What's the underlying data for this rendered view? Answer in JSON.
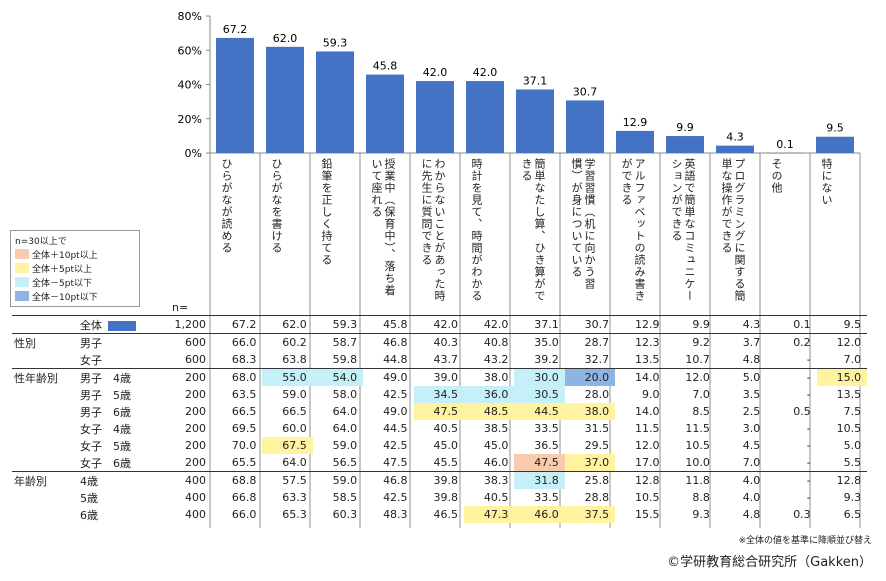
{
  "chart_data": {
    "type": "bar",
    "categories": [
      "ひらがなが読める",
      "ひらがなを書ける",
      "鉛筆を正しく持てる",
      "授業中（保育中）、落ち着いて座れる",
      "わからないことがあった時に先生に質問できる",
      "時計を見て、時間がわかる",
      "簡単なたし算、ひき算ができる",
      "学習習慣（机に向かう習慣）が身についている",
      "アルファベットの読み書きができる",
      "英語で簡単なコミュニケーションができる",
      "プログラミングに関する簡単な操作ができる",
      "その他",
      "特にない"
    ],
    "values": [
      67.2,
      62.0,
      59.3,
      45.8,
      42.0,
      42.0,
      37.1,
      30.7,
      12.9,
      9.9,
      4.3,
      0.1,
      9.5
    ],
    "value_labels": [
      "67.2",
      "62.0",
      "59.3",
      "45.8",
      "42.0",
      "42.0",
      "37.1",
      "30.7",
      "12.9",
      "9.9",
      "4.3",
      "0.1",
      "9.5"
    ],
    "ylim": [
      0,
      80
    ],
    "yticks": [
      "0%",
      "20%",
      "40%",
      "60%",
      "80%"
    ],
    "bar_color": "#4472C4"
  },
  "n_label": "n=",
  "legend": {
    "title": "n=30以上で",
    "items": [
      {
        "label": "全体＋10pt以上",
        "color": "#F8CBAD"
      },
      {
        "label": "全体＋5pt以上",
        "color": "#FFF2A0"
      },
      {
        "label": "全体－5pt以下",
        "color": "#C6F0F8"
      },
      {
        "label": "全体－10pt以下",
        "color": "#8DB4E2"
      }
    ]
  },
  "table": {
    "rows": [
      {
        "group": "",
        "sub": "全体",
        "n": "1,200",
        "vals": [
          "67.2",
          "62.0",
          "59.3",
          "45.8",
          "42.0",
          "42.0",
          "37.1",
          "30.7",
          "12.9",
          "9.9",
          "4.3",
          "0.1",
          "9.5"
        ],
        "hl": {}
      },
      {
        "group": "性別",
        "sub": "男子",
        "n": "600",
        "vals": [
          "66.0",
          "60.2",
          "58.7",
          "46.8",
          "40.3",
          "40.8",
          "35.0",
          "28.7",
          "12.3",
          "9.2",
          "3.7",
          "0.2",
          "12.0"
        ],
        "hl": {}
      },
      {
        "group": "",
        "sub": "女子",
        "n": "600",
        "vals": [
          "68.3",
          "63.8",
          "59.8",
          "44.8",
          "43.7",
          "43.2",
          "39.2",
          "32.7",
          "13.5",
          "10.7",
          "4.8",
          "-",
          "7.0"
        ],
        "hl": {}
      },
      {
        "group": "性年齢別",
        "sub": "男子　4歳",
        "n": "200",
        "vals": [
          "68.0",
          "55.0",
          "54.0",
          "49.0",
          "39.0",
          "38.0",
          "30.0",
          "20.0",
          "14.0",
          "12.0",
          "5.0",
          "-",
          "15.0"
        ],
        "hl": {
          "1": "lb",
          "2": "lb",
          "6": "lb",
          "7": "db",
          "12": "y"
        }
      },
      {
        "group": "",
        "sub": "男子　5歳",
        "n": "200",
        "vals": [
          "63.5",
          "59.0",
          "58.0",
          "42.5",
          "34.5",
          "36.0",
          "30.5",
          "28.0",
          "9.0",
          "7.0",
          "3.5",
          "-",
          "13.5"
        ],
        "hl": {
          "4": "lb",
          "5": "lb",
          "6": "lb"
        }
      },
      {
        "group": "",
        "sub": "男子　6歳",
        "n": "200",
        "vals": [
          "66.5",
          "66.5",
          "64.0",
          "49.0",
          "47.5",
          "48.5",
          "44.5",
          "38.0",
          "14.0",
          "8.5",
          "2.5",
          "0.5",
          "7.5"
        ],
        "hl": {
          "4": "y",
          "5": "y",
          "6": "y",
          "7": "y"
        }
      },
      {
        "group": "",
        "sub": "女子　4歳",
        "n": "200",
        "vals": [
          "69.5",
          "60.0",
          "64.0",
          "44.5",
          "40.5",
          "38.5",
          "33.5",
          "31.5",
          "11.5",
          "11.5",
          "3.0",
          "-",
          "10.5"
        ],
        "hl": {}
      },
      {
        "group": "",
        "sub": "女子　5歳",
        "n": "200",
        "vals": [
          "70.0",
          "67.5",
          "59.0",
          "42.5",
          "45.0",
          "45.0",
          "36.5",
          "29.5",
          "12.0",
          "10.5",
          "4.5",
          "-",
          "5.0"
        ],
        "hl": {
          "1": "y"
        }
      },
      {
        "group": "",
        "sub": "女子　6歳",
        "n": "200",
        "vals": [
          "65.5",
          "64.0",
          "56.5",
          "47.5",
          "45.5",
          "46.0",
          "47.5",
          "37.0",
          "17.0",
          "10.0",
          "7.0",
          "-",
          "5.5"
        ],
        "hl": {
          "6": "o",
          "7": "y"
        }
      },
      {
        "group": "年齢別",
        "sub": "4歳",
        "n": "400",
        "vals": [
          "68.8",
          "57.5",
          "59.0",
          "46.8",
          "39.8",
          "38.3",
          "31.8",
          "25.8",
          "12.8",
          "11.8",
          "4.0",
          "-",
          "12.8"
        ],
        "hl": {
          "6": "lb"
        }
      },
      {
        "group": "",
        "sub": "5歳",
        "n": "400",
        "vals": [
          "66.8",
          "63.3",
          "58.5",
          "42.5",
          "39.8",
          "40.5",
          "33.5",
          "28.8",
          "10.5",
          "8.8",
          "4.0",
          "-",
          "9.3"
        ],
        "hl": {}
      },
      {
        "group": "",
        "sub": "6歳",
        "n": "400",
        "vals": [
          "66.0",
          "65.3",
          "60.3",
          "48.3",
          "46.5",
          "47.3",
          "46.0",
          "37.5",
          "15.5",
          "9.3",
          "4.8",
          "0.3",
          "6.5"
        ],
        "hl": {
          "5": "y",
          "6": "y",
          "7": "y"
        }
      }
    ]
  },
  "note": "※全体の値を基準に降順並び替え",
  "copyright": "©学研教育総合研究所（Gakken）"
}
